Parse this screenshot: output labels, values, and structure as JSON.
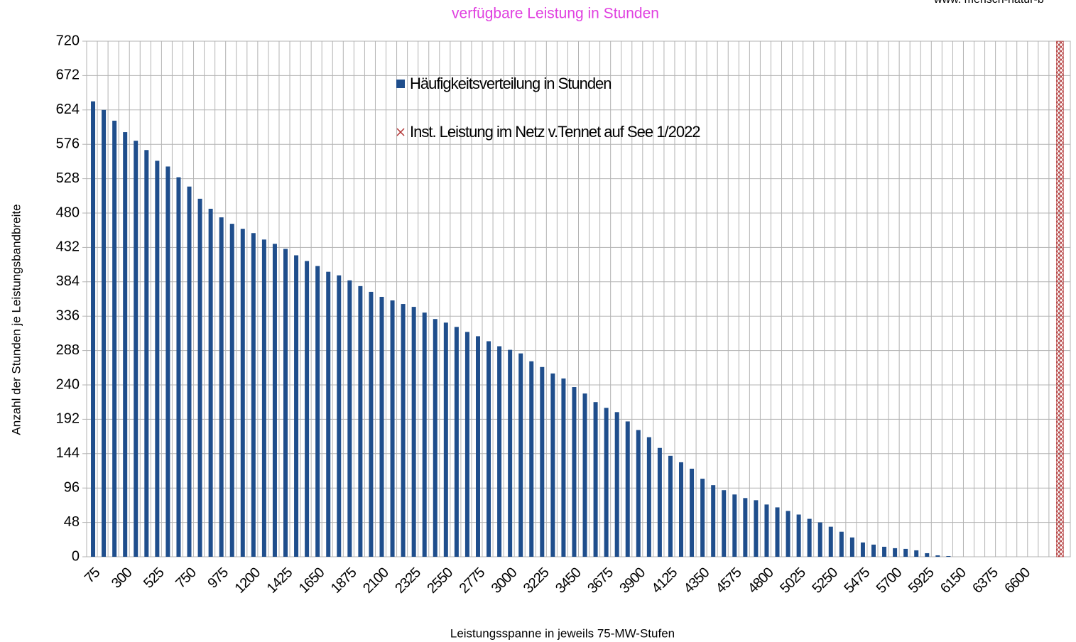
{
  "chart_data": {
    "type": "bar",
    "title": "verfügbare Leistung in Stunden",
    "source": "www. mensch-natur-b",
    "x_label": "Leistungsspanne in jeweils 75-MW-Stufen",
    "y_label": "Anzahl der Stunden je Leistungsbandbreite",
    "categories": [
      75,
      null,
      null,
      300,
      null,
      null,
      525,
      null,
      null,
      750,
      null,
      null,
      975,
      null,
      null,
      1200,
      null,
      null,
      1425,
      null,
      null,
      1650,
      null,
      null,
      1875,
      null,
      null,
      2100,
      null,
      null,
      2325,
      null,
      null,
      2550,
      null,
      null,
      2775,
      null,
      null,
      3000,
      null,
      null,
      3225,
      null,
      null,
      3450,
      null,
      null,
      3675,
      null,
      null,
      3900,
      null,
      null,
      4125,
      null,
      null,
      4350,
      null,
      null,
      4575,
      null,
      null,
      4800,
      null,
      null,
      5025,
      null,
      null,
      5250,
      null,
      null,
      5475,
      null,
      null,
      5700,
      null,
      null,
      5925,
      null,
      null,
      6150,
      null,
      null,
      6375,
      null,
      null,
      6600,
      null,
      null,
      null,
      null
    ],
    "series": [
      {
        "name": "Häufigkeitsverteilung in Stunden",
        "color": "#1f4e8c",
        "values": [
          636,
          624,
          609,
          593,
          581,
          568,
          553,
          545,
          530,
          517,
          500,
          486,
          474,
          465,
          458,
          452,
          443,
          437,
          430,
          421,
          413,
          406,
          398,
          393,
          386,
          378,
          370,
          363,
          358,
          353,
          349,
          341,
          332,
          327,
          321,
          314,
          308,
          301,
          294,
          289,
          284,
          273,
          265,
          256,
          249,
          237,
          228,
          216,
          208,
          202,
          189,
          177,
          167,
          152,
          141,
          132,
          123,
          109,
          100,
          93,
          87,
          82,
          79,
          73,
          69,
          64,
          59,
          53,
          48,
          42,
          35,
          27,
          20,
          17,
          14,
          12,
          11,
          9,
          5,
          2,
          1,
          0,
          0,
          0,
          0,
          0,
          0,
          0,
          0,
          0,
          0,
          0
        ]
      },
      {
        "name": "Inst. Leistung im Netz v.Tennet auf See 1/2022",
        "color": "#b03030",
        "values": [
          null,
          null,
          null,
          null,
          null,
          null,
          null,
          null,
          null,
          null,
          null,
          null,
          null,
          null,
          null,
          null,
          null,
          null,
          null,
          null,
          null,
          null,
          null,
          null,
          null,
          null,
          null,
          null,
          null,
          null,
          null,
          null,
          null,
          null,
          null,
          null,
          null,
          null,
          null,
          null,
          null,
          null,
          null,
          null,
          null,
          null,
          null,
          null,
          null,
          null,
          null,
          null,
          null,
          null,
          null,
          null,
          null,
          null,
          null,
          null,
          null,
          null,
          null,
          null,
          null,
          null,
          null,
          null,
          null,
          null,
          null,
          null,
          null,
          null,
          null,
          null,
          null,
          null,
          null,
          null,
          null,
          null,
          null,
          null,
          null,
          null,
          null,
          null,
          null,
          null,
          720,
          null
        ]
      }
    ],
    "ylim": [
      0,
      720
    ],
    "yticks": [
      0,
      48,
      96,
      144,
      192,
      240,
      288,
      336,
      384,
      432,
      480,
      528,
      576,
      624,
      672,
      720
    ],
    "grid": true
  }
}
